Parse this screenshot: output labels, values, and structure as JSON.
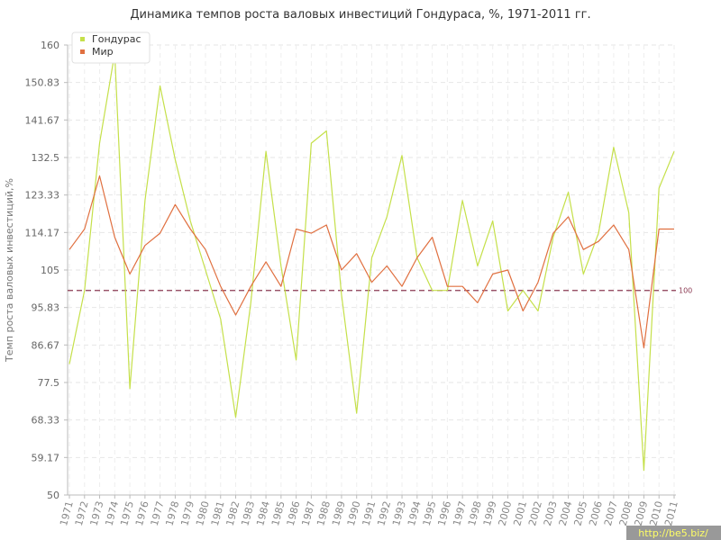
{
  "chart_data": {
    "type": "line",
    "title": "Динамика темпов роста валовых инвестиций Гондураса, %, 1971-2011 гг.",
    "xlabel": "",
    "ylabel": "Темп роста валовых инвестиций,%",
    "ylim": [
      50,
      160
    ],
    "yticks": [
      "50",
      "59.17",
      "68.33",
      "77.5",
      "86.67",
      "95.83",
      "105",
      "114.17",
      "123.33",
      "132.5",
      "141.67",
      "150.83",
      "160"
    ],
    "categories": [
      "1971",
      "1972",
      "1973",
      "1974",
      "1975",
      "1976",
      "1977",
      "1978",
      "1979",
      "1980",
      "1981",
      "1982",
      "1983",
      "1984",
      "1985",
      "1986",
      "1987",
      "1988",
      "1989",
      "1990",
      "1991",
      "1992",
      "1993",
      "1994",
      "1995",
      "1996",
      "1997",
      "1998",
      "1999",
      "2000",
      "2001",
      "2002",
      "2003",
      "2004",
      "2005",
      "2006",
      "2007",
      "2008",
      "2009",
      "2010",
      "2011"
    ],
    "series": [
      {
        "name": "Гондурас",
        "color": "#c5e04a",
        "values": [
          82,
          100,
          136,
          158,
          76,
          122,
          150,
          132,
          117,
          105,
          93,
          69,
          97,
          134,
          106,
          83,
          136,
          139,
          99,
          70,
          108,
          118,
          133,
          108,
          100,
          100,
          122,
          106,
          117,
          95,
          100,
          95,
          113,
          124,
          104,
          114,
          135,
          119,
          56,
          125,
          134
        ]
      },
      {
        "name": "Мир",
        "color": "#e07040",
        "values": [
          110,
          115,
          128,
          113,
          104,
          111,
          114,
          121,
          115,
          110,
          101,
          94,
          101,
          107,
          101,
          115,
          114,
          116,
          105,
          109,
          102,
          106,
          101,
          108,
          113,
          101,
          101,
          97,
          104,
          105,
          95,
          102,
          114,
          118,
          110,
          112,
          116,
          110,
          86,
          115,
          115
        ]
      }
    ],
    "reference_line": {
      "value": 100,
      "label": "100",
      "color": "#8b3a52"
    },
    "grid": true,
    "legend": "top-left",
    "watermark": "http://be5.biz/"
  }
}
